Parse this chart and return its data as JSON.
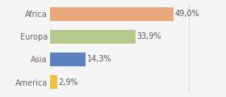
{
  "categories": [
    "America",
    "Asia",
    "Europa",
    "Africa"
  ],
  "values": [
    2.9,
    14.3,
    33.9,
    49.0
  ],
  "bar_colors": [
    "#f0c040",
    "#5b7fbf",
    "#b5c98a",
    "#e8a87c"
  ],
  "labels": [
    "2,9%",
    "14,3%",
    "33,9%",
    "49,0%"
  ],
  "background_color": "#f5f5f5",
  "xlim": [
    0,
    68
  ],
  "bar_height": 0.6,
  "label_fontsize": 7.0,
  "ytick_fontsize": 7.0
}
